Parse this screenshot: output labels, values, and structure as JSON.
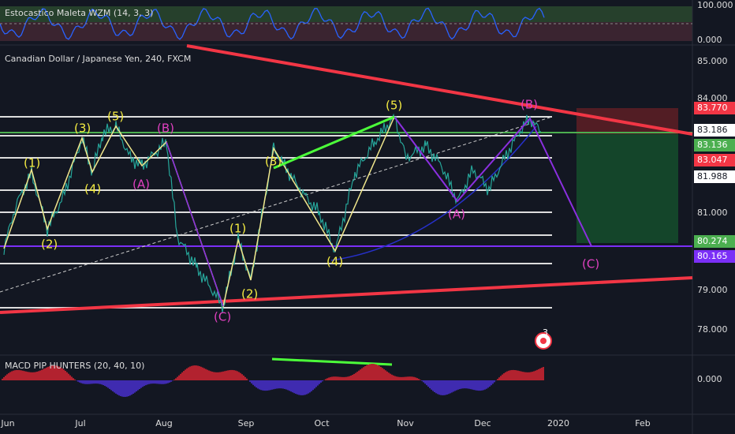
{
  "stoch": {
    "title": "Estocastico Maleta WZM (14, 3, 3)",
    "scale": [
      "100.000",
      "0.000"
    ]
  },
  "main": {
    "title": "Canadian Dollar / Japanese Yen, 240, FXCM",
    "scale": [
      "85.000",
      "84.000",
      "81.000",
      "79.000",
      "78.000"
    ],
    "price_tags": [
      "83.770",
      "83.186",
      "83.136",
      "83.047",
      "81.988",
      "80.274",
      "80.165"
    ],
    "waves": [
      "(1)",
      "(2)",
      "(3)",
      "(4)",
      "(5)",
      "(B)",
      "(A)",
      "(C)",
      "(1)",
      "(2)",
      "(3)",
      "(4)",
      "(5)",
      "(B)",
      "(A)",
      "(C)"
    ],
    "badge": "3"
  },
  "macd": {
    "title": "MACD PIP HUNTERS (20, 40, 10)",
    "scale": [
      "0.000"
    ]
  },
  "time_axis": [
    "Jun",
    "Jul",
    "Aug",
    "Sep",
    "Oct",
    "Nov",
    "Dec",
    "2020",
    "Feb"
  ]
}
